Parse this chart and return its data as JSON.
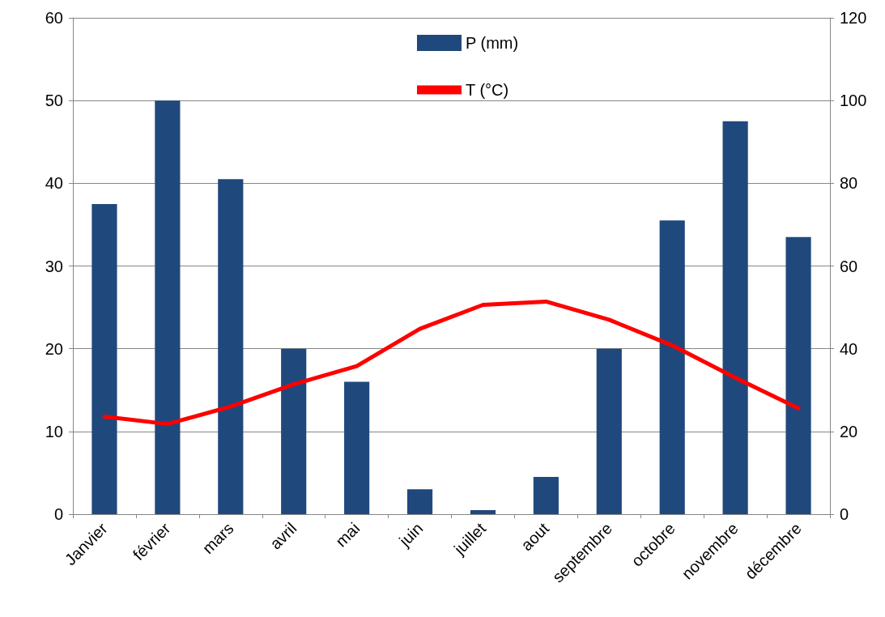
{
  "chart_data": {
    "type": "bar",
    "categories": [
      "Janvier",
      "février",
      "mars",
      "avril",
      "mai",
      "juin",
      "juillet",
      "aout",
      "septembre",
      "octobre",
      "novembre",
      "décembre"
    ],
    "series": [
      {
        "name": "P (mm)",
        "axis": "y2",
        "color": "#1f497d",
        "values": [
          75,
          100,
          81,
          40,
          32,
          6,
          1,
          9,
          40,
          71,
          95,
          67
        ]
      },
      {
        "name": "T (°C)",
        "type": "line",
        "axis": "y",
        "color": "#ff0000",
        "values": [
          11.8,
          10.9,
          13,
          15.7,
          17.9,
          22.4,
          25.3,
          25.7,
          23.5,
          20.4,
          16.5,
          12.8
        ]
      }
    ],
    "ylim": [
      0,
      60
    ],
    "yticks": [
      0,
      10,
      20,
      30,
      40,
      50,
      60
    ],
    "y2lim": [
      0,
      120
    ],
    "y2ticks": [
      0,
      20,
      40,
      60,
      80,
      100,
      120
    ],
    "grid": "y",
    "legend": "top",
    "marker": "none",
    "line_style": "solid"
  }
}
